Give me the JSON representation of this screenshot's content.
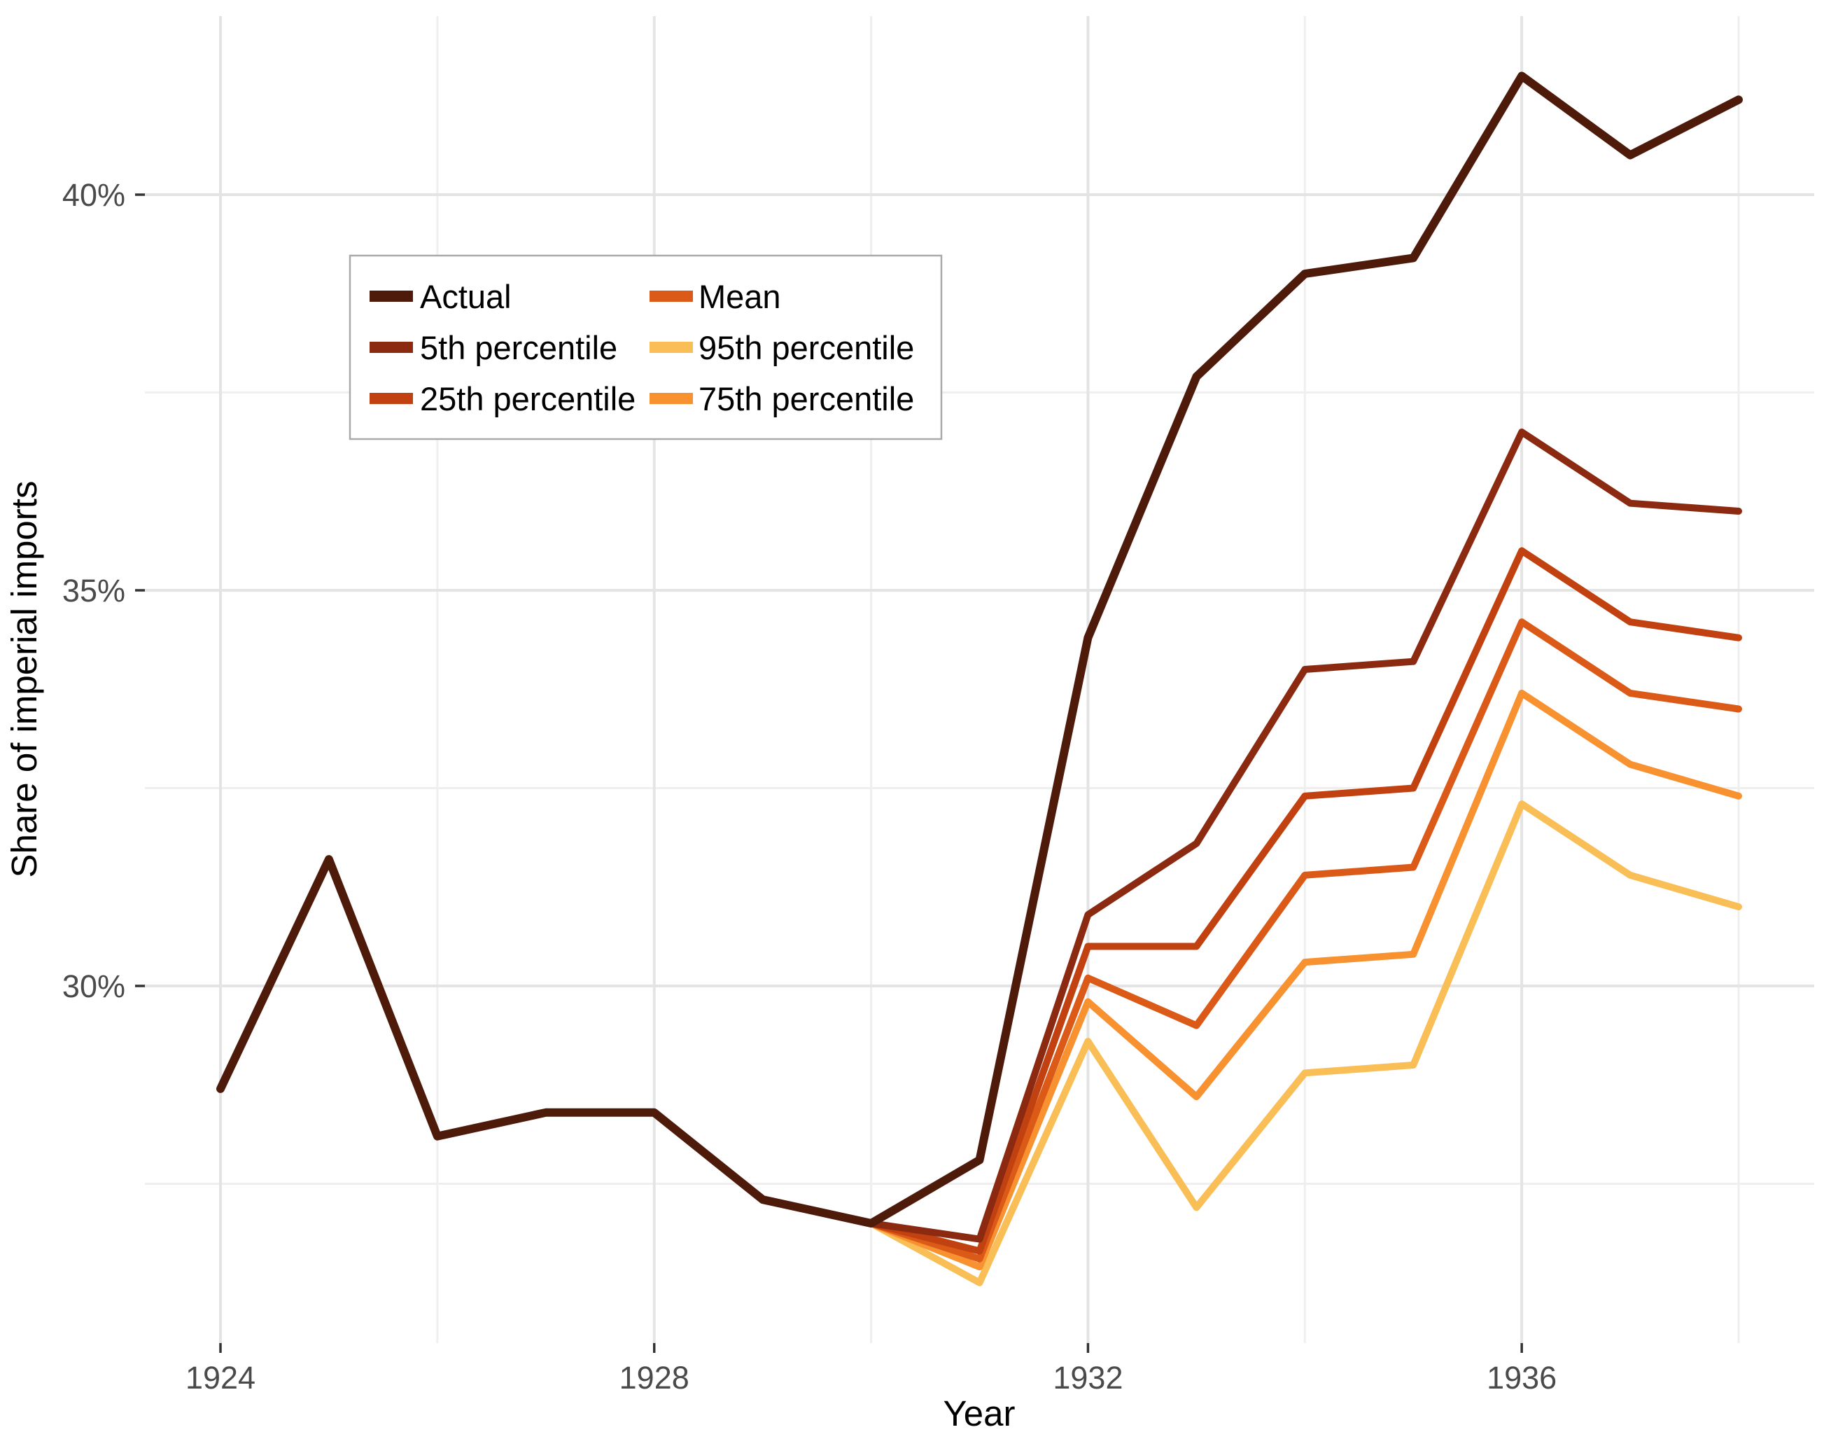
{
  "chart_data": {
    "type": "line",
    "title": "",
    "xlabel": "Year",
    "ylabel": "Share of imperial imports",
    "grid": "on",
    "legend_position": "inset-top-left",
    "background": "#ffffff",
    "major_grid_color": "#e4e4e4",
    "minor_grid_color": "#efefef",
    "tick_color": "#333333",
    "tick_label_color": "#4a4a4a",
    "legend_border_color": "#a9a9a9",
    "xlim": [
      1923.3,
      1938.7
    ],
    "ylim": [
      25.5,
      42.26
    ],
    "x": [
      1924,
      1925,
      1926,
      1927,
      1928,
      1929,
      1930,
      1931,
      1932,
      1933,
      1934,
      1935,
      1936,
      1937,
      1938
    ],
    "x_ticks": [
      {
        "value": 1924,
        "label": "1924"
      },
      {
        "value": 1928,
        "label": "1928"
      },
      {
        "value": 1932,
        "label": "1932"
      },
      {
        "value": 1936,
        "label": "1936"
      }
    ],
    "x_minor_ticks": [
      1926,
      1930,
      1934,
      1938
    ],
    "y_ticks": [
      {
        "value": 40,
        "label": "40%"
      },
      {
        "value": 35,
        "label": "35%"
      },
      {
        "value": 30,
        "label": "30%"
      }
    ],
    "y_minor_ticks": [
      27.5,
      32.5,
      37.5
    ],
    "series": [
      {
        "name": "Actual",
        "color": "#4e1b0b",
        "width": 12,
        "values": [
          28.7,
          31.6,
          28.1,
          28.4,
          28.4,
          27.3,
          27.0,
          27.8,
          34.4,
          37.7,
          39.0,
          39.2,
          41.5,
          40.5,
          41.2
        ]
      },
      {
        "name": "5th percentile",
        "color": "#8b2a10",
        "width": 10,
        "values": [
          null,
          null,
          null,
          null,
          null,
          null,
          27.0,
          26.8,
          30.9,
          31.8,
          34.0,
          34.1,
          37.0,
          36.1,
          36.0
        ]
      },
      {
        "name": "25th percentile",
        "color": "#c24110",
        "width": 10,
        "values": [
          null,
          null,
          null,
          null,
          null,
          null,
          27.0,
          26.65,
          30.5,
          30.5,
          32.4,
          32.5,
          35.5,
          34.6,
          34.4
        ]
      },
      {
        "name": "Mean",
        "color": "#db5a17",
        "width": 10,
        "values": [
          null,
          null,
          null,
          null,
          null,
          null,
          27.0,
          26.55,
          30.1,
          29.5,
          31.4,
          31.5,
          34.6,
          33.7,
          33.5
        ]
      },
      {
        "name": "75th percentile",
        "color": "#f89130",
        "width": 10,
        "values": [
          null,
          null,
          null,
          null,
          null,
          null,
          27.0,
          26.45,
          29.8,
          28.6,
          30.3,
          30.4,
          33.7,
          32.8,
          32.4
        ]
      },
      {
        "name": "95th percentile",
        "color": "#f9be55",
        "width": 10,
        "values": [
          null,
          null,
          null,
          null,
          null,
          null,
          27.0,
          26.25,
          29.3,
          27.2,
          28.9,
          29.0,
          32.3,
          31.4,
          31.0
        ]
      }
    ],
    "legend_entries": [
      "Actual",
      "5th percentile",
      "25th percentile",
      "Mean",
      "95th percentile",
      "75th percentile"
    ]
  }
}
